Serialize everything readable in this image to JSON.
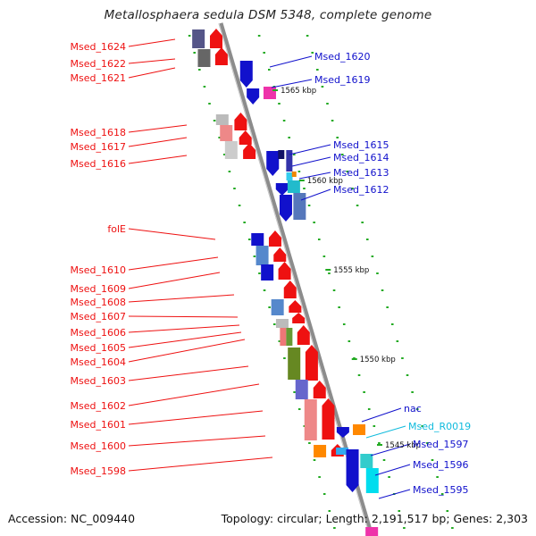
{
  "title": "Metallosphaera sedula DSM 5348, complete genome",
  "footer": {
    "accession": "Accession: NC_009440",
    "topology": "Topology: circular; Length: 2,191,517 bp; Genes: 2,303"
  },
  "colors": {
    "backbone": "#8c8c8c",
    "forward_strand": "#ee1111",
    "reverse_strand": "#1111cc",
    "rna_label": "#11bbdd",
    "dot": "#22aa22"
  },
  "kbp_labels": [
    "1565 kbp",
    "1560 kbp",
    "1555 kbp",
    "1550 kbp",
    "1545 kbp"
  ],
  "left_labels": [
    "Msed_1624",
    "Msed_1622",
    "Msed_1621",
    "Msed_1618",
    "Msed_1617",
    "Msed_1616",
    "folE",
    "Msed_1610",
    "Msed_1609",
    "Msed_1608",
    "Msed_1607",
    "Msed_1606",
    "Msed_1605",
    "Msed_1604",
    "Msed_1603",
    "Msed_1602",
    "Msed_1601",
    "Msed_1600",
    "Msed_1598"
  ],
  "right_labels": [
    "Msed_1620",
    "Msed_1619",
    "Msed_1615",
    "Msed_1614",
    "Msed_1613",
    "Msed_1612",
    "nac",
    "Msed_R0019",
    "Msed_1597",
    "Msed_1596",
    "Msed_1595"
  ]
}
